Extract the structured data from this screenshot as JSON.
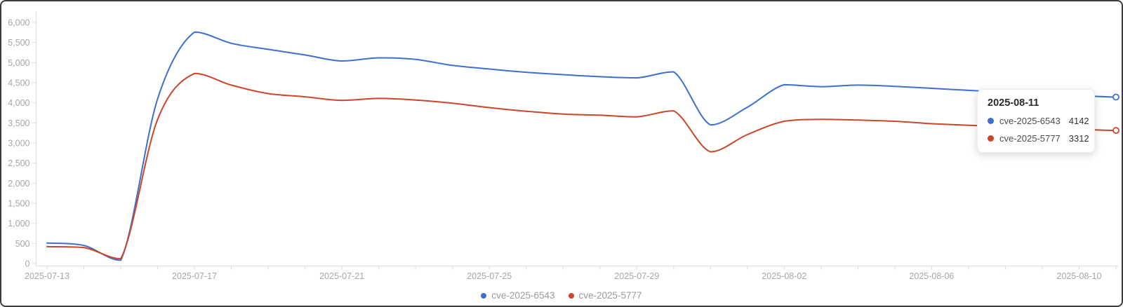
{
  "chart_data": {
    "type": "line",
    "smooth": true,
    "grid": false,
    "legend_position": "bottom",
    "ylim": [
      0,
      6000
    ],
    "y_tick_labels": [
      "0",
      "500",
      "1,000",
      "1,500",
      "2,000",
      "2,500",
      "3,000",
      "3,500",
      "4,000",
      "4,500",
      "5,000",
      "5,500",
      "6,000"
    ],
    "y_tick_values": [
      0,
      500,
      1000,
      1500,
      2000,
      2500,
      3000,
      3500,
      4000,
      4500,
      5000,
      5500,
      6000
    ],
    "x": [
      "2025-07-13",
      "2025-07-14",
      "2025-07-15",
      "2025-07-16",
      "2025-07-17",
      "2025-07-18",
      "2025-07-19",
      "2025-07-20",
      "2025-07-21",
      "2025-07-22",
      "2025-07-23",
      "2025-07-24",
      "2025-07-25",
      "2025-07-26",
      "2025-07-27",
      "2025-07-28",
      "2025-07-29",
      "2025-07-30",
      "2025-07-31",
      "2025-08-01",
      "2025-08-02",
      "2025-08-03",
      "2025-08-04",
      "2025-08-05",
      "2025-08-06",
      "2025-08-07",
      "2025-08-08",
      "2025-08-09",
      "2025-08-10",
      "2025-08-11"
    ],
    "x_axis_labels": [
      "2025-07-13",
      "2025-07-17",
      "2025-07-21",
      "2025-07-25",
      "2025-07-29",
      "2025-08-02",
      "2025-08-06",
      "2025-08-10"
    ],
    "x_label_every": 4,
    "series": [
      {
        "name": "cve-2025-6543",
        "color": "#3d6fd3",
        "values": [
          510,
          450,
          80,
          4100,
          5760,
          5480,
          5330,
          5190,
          5040,
          5120,
          5080,
          4930,
          4840,
          4760,
          4700,
          4650,
          4620,
          4770,
          3450,
          3890,
          4450,
          4400,
          4440,
          4410,
          4360,
          4310,
          4260,
          4220,
          4180,
          4142
        ]
      },
      {
        "name": "cve-2025-5777",
        "color": "#cd4429",
        "values": [
          420,
          400,
          120,
          3590,
          4730,
          4440,
          4230,
          4150,
          4060,
          4110,
          4070,
          3990,
          3880,
          3790,
          3720,
          3690,
          3650,
          3800,
          2780,
          3210,
          3540,
          3590,
          3570,
          3540,
          3480,
          3440,
          3410,
          3380,
          3340,
          3312
        ]
      }
    ]
  },
  "tooltip": {
    "date": "2025-08-11",
    "rows": [
      {
        "label": "cve-2025-6543",
        "value": "4142"
      },
      {
        "label": "cve-2025-5777",
        "value": "3312"
      }
    ]
  },
  "legend": {
    "items": [
      {
        "label": "cve-2025-6543"
      },
      {
        "label": "cve-2025-5777"
      }
    ]
  },
  "colors": {
    "axis_line": "#e0e0e0",
    "tick": "#dcdcdc",
    "axis_text": "#a6a6a6"
  }
}
